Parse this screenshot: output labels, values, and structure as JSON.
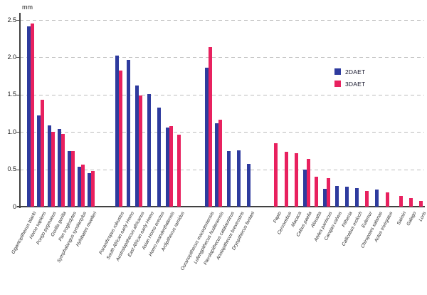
{
  "chart_data": {
    "type": "bar",
    "title": "",
    "xlabel": "",
    "ylabel": "mm",
    "ylim": [
      0,
      2.5
    ],
    "grid": "horizontal-dashed",
    "legend_position": "upper-right",
    "y_ticks": [
      {
        "label": "2.5",
        "v": 2.5
      },
      {
        "label": "2.0",
        "v": 2.0
      },
      {
        "label": "1.5",
        "v": 1.5
      },
      {
        "label": "1.0",
        "v": 1.0
      },
      {
        "label": "0.5",
        "v": 0.5
      },
      {
        "label": "0",
        "v": 0
      }
    ],
    "categories": [
      "Gigantopithecus blacki",
      "Homo sapiens",
      "Pongo pygmaeus",
      "Gorilla gorilla",
      "Pan troglodytes",
      "Symphalangus syndactylus",
      "Hylobates muelleri",
      "Paranthropus robustus",
      "South African early Homo",
      "Australopithecus africanus",
      "East African early Homo",
      "Asian Homo erectus",
      "Homo neanderthalensis",
      "Ardipithecus ramidus",
      "Ouranopithecus macedoniensis",
      "Lufengpithecus hudienensis",
      "Pierolapithecus catalaunicus",
      "Anoiapithecus brevirostris",
      "Dryopithecus fontani",
      "Papio",
      "Cercocebus",
      "Macaca",
      "Cebus paella",
      "Alouatta",
      "Ateles paniscus",
      "Cacajao calvus",
      "Pithecia",
      "Callicebus moloch",
      "Eulemur",
      "Chiropotes satanas",
      "Aotus trivirgatus",
      "Saimiri",
      "Galago",
      "Loris"
    ],
    "series": [
      {
        "name": "2DAET",
        "color": "#2e3b9e",
        "values": [
          2.41,
          1.22,
          1.09,
          1.04,
          0.74,
          0.53,
          0.45,
          2.02,
          1.97,
          1.62,
          1.51,
          1.33,
          1.06,
          null,
          1.86,
          1.12,
          0.74,
          0.75,
          0.57,
          null,
          null,
          null,
          0.5,
          null,
          0.24,
          0.28,
          0.27,
          0.25,
          null,
          0.23,
          null,
          null,
          null,
          null
        ]
      },
      {
        "name": "3DAET",
        "color": "#e8215f",
        "values": [
          2.45,
          1.43,
          1.0,
          0.97,
          0.74,
          0.56,
          0.48,
          1.82,
          null,
          1.49,
          null,
          null,
          1.08,
          0.96,
          2.14,
          1.16,
          null,
          null,
          null,
          0.85,
          0.73,
          0.72,
          0.64,
          0.4,
          0.38,
          null,
          null,
          null,
          0.21,
          null,
          0.19,
          0.14,
          0.11,
          0.08
        ]
      }
    ],
    "gaps_after": {
      "6": 24,
      "13": 27,
      "18": 24,
      "30": 5
    }
  }
}
